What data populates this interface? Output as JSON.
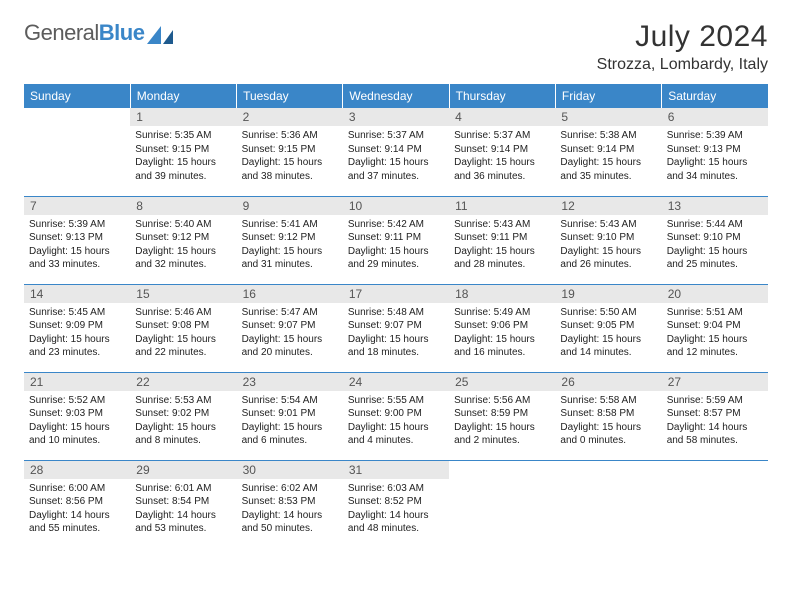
{
  "logo": {
    "text1": "General",
    "text2": "Blue"
  },
  "title": "July 2024",
  "location": "Strozza, Lombardy, Italy",
  "colors": {
    "header_bg": "#3a86c8",
    "header_fg": "#ffffff",
    "daynum_bg": "#e8e8e8",
    "daynum_fg": "#555555",
    "text": "#222222",
    "rule": "#3a86c8"
  },
  "weekdays": [
    "Sunday",
    "Monday",
    "Tuesday",
    "Wednesday",
    "Thursday",
    "Friday",
    "Saturday"
  ],
  "weeks": [
    [
      {
        "n": "",
        "sr": "",
        "ss": "",
        "dl": "",
        "empty": true
      },
      {
        "n": "1",
        "sr": "Sunrise: 5:35 AM",
        "ss": "Sunset: 9:15 PM",
        "dl": "Daylight: 15 hours and 39 minutes."
      },
      {
        "n": "2",
        "sr": "Sunrise: 5:36 AM",
        "ss": "Sunset: 9:15 PM",
        "dl": "Daylight: 15 hours and 38 minutes."
      },
      {
        "n": "3",
        "sr": "Sunrise: 5:37 AM",
        "ss": "Sunset: 9:14 PM",
        "dl": "Daylight: 15 hours and 37 minutes."
      },
      {
        "n": "4",
        "sr": "Sunrise: 5:37 AM",
        "ss": "Sunset: 9:14 PM",
        "dl": "Daylight: 15 hours and 36 minutes."
      },
      {
        "n": "5",
        "sr": "Sunrise: 5:38 AM",
        "ss": "Sunset: 9:14 PM",
        "dl": "Daylight: 15 hours and 35 minutes."
      },
      {
        "n": "6",
        "sr": "Sunrise: 5:39 AM",
        "ss": "Sunset: 9:13 PM",
        "dl": "Daylight: 15 hours and 34 minutes."
      }
    ],
    [
      {
        "n": "7",
        "sr": "Sunrise: 5:39 AM",
        "ss": "Sunset: 9:13 PM",
        "dl": "Daylight: 15 hours and 33 minutes."
      },
      {
        "n": "8",
        "sr": "Sunrise: 5:40 AM",
        "ss": "Sunset: 9:12 PM",
        "dl": "Daylight: 15 hours and 32 minutes."
      },
      {
        "n": "9",
        "sr": "Sunrise: 5:41 AM",
        "ss": "Sunset: 9:12 PM",
        "dl": "Daylight: 15 hours and 31 minutes."
      },
      {
        "n": "10",
        "sr": "Sunrise: 5:42 AM",
        "ss": "Sunset: 9:11 PM",
        "dl": "Daylight: 15 hours and 29 minutes."
      },
      {
        "n": "11",
        "sr": "Sunrise: 5:43 AM",
        "ss": "Sunset: 9:11 PM",
        "dl": "Daylight: 15 hours and 28 minutes."
      },
      {
        "n": "12",
        "sr": "Sunrise: 5:43 AM",
        "ss": "Sunset: 9:10 PM",
        "dl": "Daylight: 15 hours and 26 minutes."
      },
      {
        "n": "13",
        "sr": "Sunrise: 5:44 AM",
        "ss": "Sunset: 9:10 PM",
        "dl": "Daylight: 15 hours and 25 minutes."
      }
    ],
    [
      {
        "n": "14",
        "sr": "Sunrise: 5:45 AM",
        "ss": "Sunset: 9:09 PM",
        "dl": "Daylight: 15 hours and 23 minutes."
      },
      {
        "n": "15",
        "sr": "Sunrise: 5:46 AM",
        "ss": "Sunset: 9:08 PM",
        "dl": "Daylight: 15 hours and 22 minutes."
      },
      {
        "n": "16",
        "sr": "Sunrise: 5:47 AM",
        "ss": "Sunset: 9:07 PM",
        "dl": "Daylight: 15 hours and 20 minutes."
      },
      {
        "n": "17",
        "sr": "Sunrise: 5:48 AM",
        "ss": "Sunset: 9:07 PM",
        "dl": "Daylight: 15 hours and 18 minutes."
      },
      {
        "n": "18",
        "sr": "Sunrise: 5:49 AM",
        "ss": "Sunset: 9:06 PM",
        "dl": "Daylight: 15 hours and 16 minutes."
      },
      {
        "n": "19",
        "sr": "Sunrise: 5:50 AM",
        "ss": "Sunset: 9:05 PM",
        "dl": "Daylight: 15 hours and 14 minutes."
      },
      {
        "n": "20",
        "sr": "Sunrise: 5:51 AM",
        "ss": "Sunset: 9:04 PM",
        "dl": "Daylight: 15 hours and 12 minutes."
      }
    ],
    [
      {
        "n": "21",
        "sr": "Sunrise: 5:52 AM",
        "ss": "Sunset: 9:03 PM",
        "dl": "Daylight: 15 hours and 10 minutes."
      },
      {
        "n": "22",
        "sr": "Sunrise: 5:53 AM",
        "ss": "Sunset: 9:02 PM",
        "dl": "Daylight: 15 hours and 8 minutes."
      },
      {
        "n": "23",
        "sr": "Sunrise: 5:54 AM",
        "ss": "Sunset: 9:01 PM",
        "dl": "Daylight: 15 hours and 6 minutes."
      },
      {
        "n": "24",
        "sr": "Sunrise: 5:55 AM",
        "ss": "Sunset: 9:00 PM",
        "dl": "Daylight: 15 hours and 4 minutes."
      },
      {
        "n": "25",
        "sr": "Sunrise: 5:56 AM",
        "ss": "Sunset: 8:59 PM",
        "dl": "Daylight: 15 hours and 2 minutes."
      },
      {
        "n": "26",
        "sr": "Sunrise: 5:58 AM",
        "ss": "Sunset: 8:58 PM",
        "dl": "Daylight: 15 hours and 0 minutes."
      },
      {
        "n": "27",
        "sr": "Sunrise: 5:59 AM",
        "ss": "Sunset: 8:57 PM",
        "dl": "Daylight: 14 hours and 58 minutes."
      }
    ],
    [
      {
        "n": "28",
        "sr": "Sunrise: 6:00 AM",
        "ss": "Sunset: 8:56 PM",
        "dl": "Daylight: 14 hours and 55 minutes."
      },
      {
        "n": "29",
        "sr": "Sunrise: 6:01 AM",
        "ss": "Sunset: 8:54 PM",
        "dl": "Daylight: 14 hours and 53 minutes."
      },
      {
        "n": "30",
        "sr": "Sunrise: 6:02 AM",
        "ss": "Sunset: 8:53 PM",
        "dl": "Daylight: 14 hours and 50 minutes."
      },
      {
        "n": "31",
        "sr": "Sunrise: 6:03 AM",
        "ss": "Sunset: 8:52 PM",
        "dl": "Daylight: 14 hours and 48 minutes."
      },
      {
        "n": "",
        "sr": "",
        "ss": "",
        "dl": "",
        "empty": true
      },
      {
        "n": "",
        "sr": "",
        "ss": "",
        "dl": "",
        "empty": true
      },
      {
        "n": "",
        "sr": "",
        "ss": "",
        "dl": "",
        "empty": true
      }
    ]
  ]
}
